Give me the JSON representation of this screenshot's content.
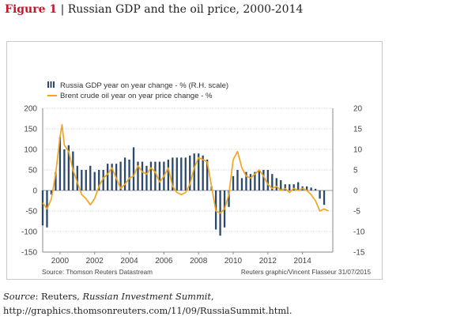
{
  "figure": {
    "number": "Figure 1",
    "separator": " | ",
    "title": "Russian GDP and the oil price, 2000-2014"
  },
  "caption": {
    "source_label": "Source",
    "text_1": ": Reuters, ",
    "publication": "Russian Investment Summit",
    "text_2": ", http://graphics.thomsonreuters.com/11/09/RussiaSummit.html."
  },
  "chart_data": {
    "type": "bar",
    "legend": [
      {
        "label": "Russia GDP year on year change - % (R.H. scale)",
        "type": "bar",
        "color": "#2b4a6b"
      },
      {
        "label": "Brent crude oil year on year price change - %",
        "type": "line",
        "color": "#f0a623"
      }
    ],
    "legend_position": "top-left",
    "source_left": "Source: Thomson Reuters Datastream",
    "source_right": "Reuters graphic/Vincent Flasseur 31/07/2015",
    "x_ticks": [
      "2000",
      "2002",
      "2004",
      "2006",
      "2008",
      "2010",
      "2012",
      "2014"
    ],
    "xlim": [
      1999,
      2015.75
    ],
    "y_left": {
      "ticks": [
        200,
        150,
        100,
        50,
        0,
        -50,
        -100,
        -150
      ],
      "ylim": [
        -150,
        200
      ]
    },
    "y_right": {
      "ticks": [
        20,
        15,
        10,
        5,
        0,
        -5,
        -10,
        -15
      ],
      "ylim": [
        -15,
        20
      ]
    },
    "grid": true,
    "series": [
      {
        "name": "Russia GDP year on year change - % (R.H. scale)",
        "type": "bar",
        "axis": "right",
        "color": "#2b4a6b",
        "x": [
          1999.0,
          1999.25,
          1999.5,
          1999.75,
          2000.0,
          2000.25,
          2000.5,
          2000.75,
          2001.0,
          2001.25,
          2001.5,
          2001.75,
          2002.0,
          2002.25,
          2002.5,
          2002.75,
          2003.0,
          2003.25,
          2003.5,
          2003.75,
          2004.0,
          2004.25,
          2004.5,
          2004.75,
          2005.0,
          2005.25,
          2005.5,
          2005.75,
          2006.0,
          2006.25,
          2006.5,
          2006.75,
          2007.0,
          2007.25,
          2007.5,
          2007.75,
          2008.0,
          2008.25,
          2008.5,
          2008.75,
          2009.0,
          2009.25,
          2009.5,
          2009.75,
          2010.0,
          2010.25,
          2010.5,
          2010.75,
          2011.0,
          2011.25,
          2011.5,
          2011.75,
          2012.0,
          2012.25,
          2012.5,
          2012.75,
          2013.0,
          2013.25,
          2013.5,
          2013.75,
          2014.0,
          2014.25,
          2014.5,
          2014.75,
          2015.0,
          2015.25
        ],
        "values": [
          -8.5,
          -9,
          -1,
          4.5,
          13,
          10,
          11,
          9.5,
          6,
          5,
          5,
          6,
          4.5,
          5,
          5,
          6.5,
          6.5,
          6.5,
          7,
          8,
          7.5,
          10.5,
          7,
          7,
          6,
          7,
          7,
          7,
          7,
          7.5,
          8,
          8,
          8,
          8,
          8.5,
          9,
          9,
          8.5,
          7.5,
          1,
          -9.5,
          -11,
          -9,
          -4,
          3.5,
          5,
          3,
          4.5,
          4,
          4.5,
          5,
          5,
          5,
          4,
          3,
          2.5,
          1.5,
          1.5,
          1.5,
          2,
          1,
          1,
          0.7,
          0.4,
          -2,
          -3.5
        ]
      },
      {
        "name": "Brent crude oil year on year price change - %",
        "type": "line",
        "axis": "left",
        "color": "#f0a623",
        "x": [
          1999.0,
          1999.25,
          1999.5,
          1999.75,
          2000.0,
          2000.12,
          2000.25,
          2000.5,
          2000.75,
          2001.0,
          2001.25,
          2001.5,
          2001.75,
          2002.0,
          2002.25,
          2002.5,
          2002.75,
          2003.0,
          2003.25,
          2003.5,
          2003.75,
          2004.0,
          2004.25,
          2004.5,
          2004.75,
          2005.0,
          2005.25,
          2005.5,
          2005.75,
          2006.0,
          2006.25,
          2006.5,
          2006.75,
          2007.0,
          2007.25,
          2007.5,
          2007.75,
          2008.0,
          2008.25,
          2008.5,
          2008.75,
          2009.0,
          2009.25,
          2009.5,
          2009.75,
          2010.0,
          2010.25,
          2010.5,
          2010.75,
          2011.0,
          2011.25,
          2011.5,
          2011.75,
          2012.0,
          2012.25,
          2012.5,
          2012.75,
          2013.0,
          2013.25,
          2013.5,
          2013.75,
          2014.0,
          2014.25,
          2014.5,
          2014.75,
          2015.0,
          2015.25,
          2015.5
        ],
        "values": [
          -30,
          -45,
          -20,
          40,
          130,
          160,
          110,
          95,
          50,
          20,
          -10,
          -20,
          -35,
          -20,
          10,
          30,
          40,
          55,
          30,
          5,
          15,
          30,
          35,
          60,
          45,
          40,
          55,
          45,
          20,
          35,
          55,
          10,
          -5,
          -10,
          -5,
          15,
          55,
          80,
          75,
          70,
          10,
          -50,
          -55,
          -45,
          -10,
          75,
          95,
          55,
          35,
          30,
          40,
          50,
          35,
          15,
          5,
          10,
          0,
          5,
          -5,
          5,
          0,
          5,
          0,
          -10,
          -25,
          -50,
          -45,
          -50
        ]
      }
    ]
  }
}
